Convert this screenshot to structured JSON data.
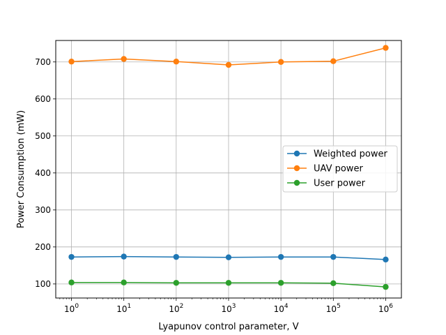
{
  "chart_data": {
    "type": "line",
    "xlabel": "Lyapunov control parameter, V",
    "ylabel": "Power Consumption (mW)",
    "x_scale": "log",
    "x": [
      1,
      10,
      100,
      1000,
      10000,
      100000,
      1000000
    ],
    "x_tick_labels": [
      {
        "base": "10",
        "exp": "0"
      },
      {
        "base": "10",
        "exp": "1"
      },
      {
        "base": "10",
        "exp": "2"
      },
      {
        "base": "10",
        "exp": "3"
      },
      {
        "base": "10",
        "exp": "4"
      },
      {
        "base": "10",
        "exp": "5"
      },
      {
        "base": "10",
        "exp": "6"
      }
    ],
    "y_ticks": [
      "100",
      "200",
      "300",
      "400",
      "500",
      "600",
      "700"
    ],
    "ylim": [
      62,
      758
    ],
    "grid": true,
    "legend_position": "center-right",
    "series": [
      {
        "name": "Weighted power",
        "color": "#1f77b4",
        "values": [
          173,
          174,
          173,
          172,
          173,
          173,
          166
        ]
      },
      {
        "name": "UAV power",
        "color": "#ff7f0e",
        "values": [
          701,
          708,
          701,
          692,
          700,
          702,
          738
        ]
      },
      {
        "name": "User power",
        "color": "#2ca02c",
        "values": [
          104,
          104,
          103,
          103,
          103,
          102,
          92
        ]
      }
    ]
  }
}
